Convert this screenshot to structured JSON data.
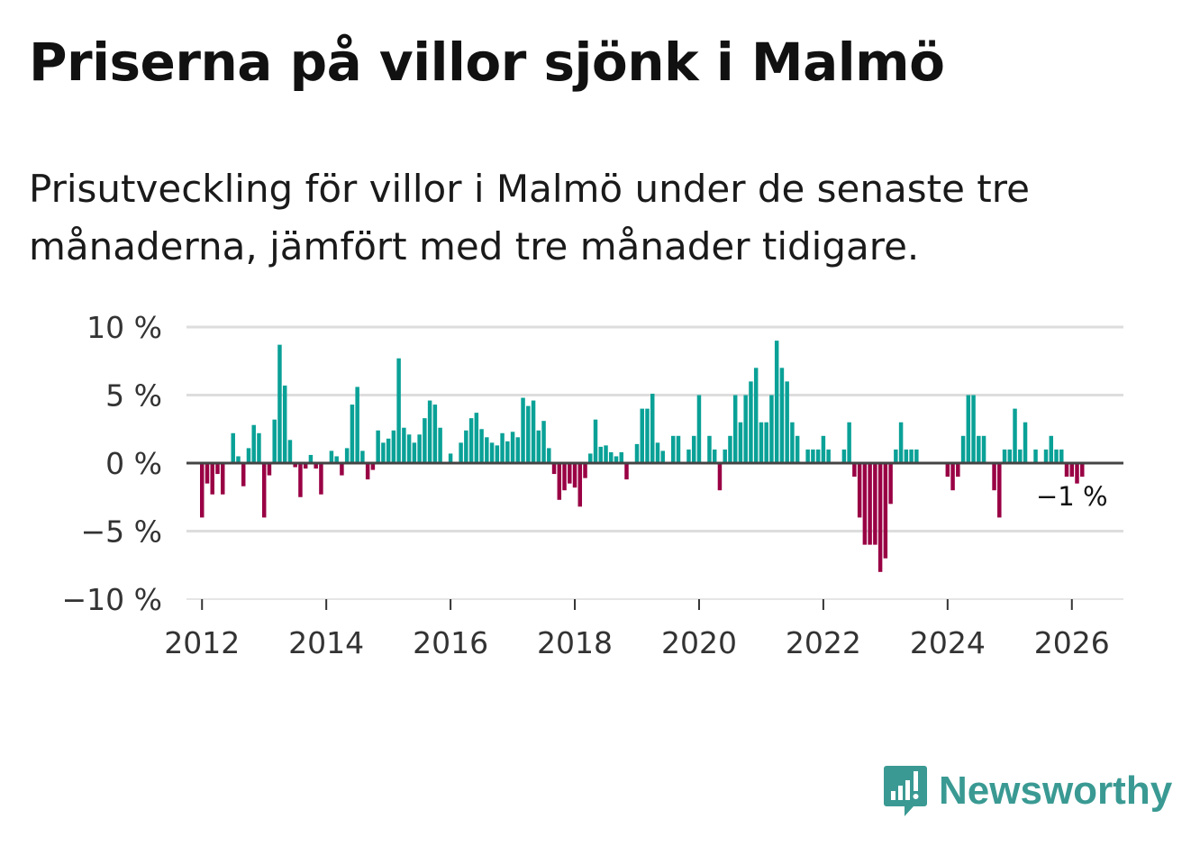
{
  "header": {
    "title": "Priserna på villor sjönk i Malmö",
    "subtitle": "Prisutveckling för villor i Malmö under de senaste tre månaderna, jämfört med tre månader tidigare."
  },
  "brand": {
    "name": "Newsworthy"
  },
  "colors": {
    "positive": "#0aa197",
    "negative": "#990044",
    "grid": "#dddddd",
    "zero_line": "#444444",
    "brand": "#3a9a93"
  },
  "chart_data": {
    "type": "bar",
    "title": "Priserna på villor sjönk i Malmö",
    "xlabel": "",
    "ylabel": "",
    "ylim": [
      -10,
      10
    ],
    "xlim": [
      2011.75,
      2026.83
    ],
    "y_ticks": [
      10,
      5,
      0,
      -5,
      -10
    ],
    "y_tick_labels": [
      "10 %",
      "5 %",
      "0 %",
      "−5 %",
      "−10 %"
    ],
    "x_ticks": [
      2012,
      2014,
      2016,
      2018,
      2020,
      2022,
      2024,
      2026
    ],
    "x_tick_labels": [
      "2012",
      "2014",
      "2016",
      "2018",
      "2020",
      "2022",
      "2024",
      "2026"
    ],
    "start": "2012-01",
    "frequency": "monthly",
    "annotation": {
      "text": "−1 %",
      "at": "2026-01"
    },
    "values": [
      -4,
      -1.5,
      -2.3,
      -0.8,
      -2.3,
      0,
      2.2,
      0.5,
      -1.7,
      1.1,
      2.8,
      2.2,
      -4,
      -0.9,
      3.2,
      8.7,
      5.7,
      1.7,
      -0.3,
      -2.5,
      -0.4,
      0.6,
      -0.4,
      -2.3,
      0,
      0.9,
      0.5,
      -0.9,
      1.1,
      4.3,
      5.6,
      0.9,
      -1.2,
      -0.5,
      2.4,
      1.5,
      1.8,
      2.4,
      7.7,
      2.6,
      2.1,
      1.5,
      2.1,
      3.3,
      4.6,
      4.3,
      2.6,
      0,
      0.7,
      0,
      1.5,
      2.4,
      3.3,
      3.7,
      2.5,
      1.9,
      1.5,
      1.3,
      2.2,
      1.6,
      2.3,
      1.9,
      4.8,
      4.2,
      4.6,
      2.4,
      3.1,
      1.1,
      -0.8,
      -2.7,
      -2,
      -1.5,
      -1.8,
      -3.2,
      -1.1,
      0.7,
      3.2,
      1.2,
      1.3,
      0.8,
      0.5,
      0.8,
      -1.2,
      0,
      1.4,
      4,
      4,
      5.1,
      1.5,
      0.9,
      0,
      2,
      2,
      0,
      1,
      2,
      5,
      0,
      2,
      1,
      -2,
      1,
      2,
      5,
      3,
      5,
      6,
      7,
      3,
      3,
      5,
      9,
      7,
      6,
      3,
      2,
      0,
      1,
      1,
      1,
      2,
      1,
      0,
      0,
      1,
      3,
      -1,
      -4,
      -6,
      -6,
      -6,
      -8,
      -7,
      -3,
      1,
      3,
      1,
      1,
      1,
      0,
      0,
      0,
      0,
      0,
      -1,
      -2,
      -1,
      2,
      5,
      5,
      2,
      2,
      0,
      -2,
      -4,
      1,
      1,
      4,
      1,
      3,
      0,
      1,
      0,
      1,
      2,
      1,
      1,
      -1,
      -1,
      -1.5,
      -1
    ]
  }
}
